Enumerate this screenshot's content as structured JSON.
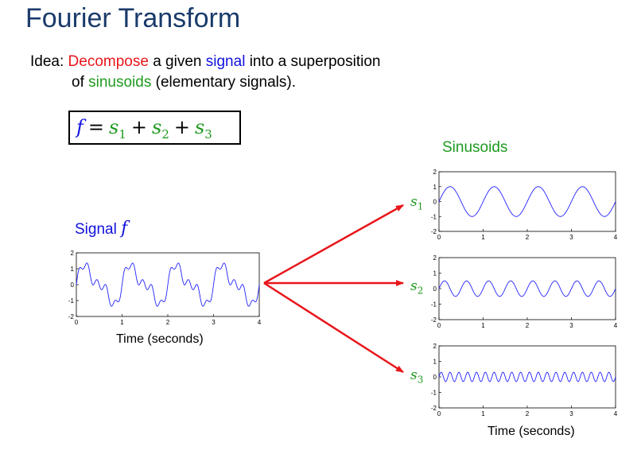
{
  "title": "Fourier Transform",
  "idea": {
    "prefix": "Idea: ",
    "decompose": "Decompose",
    "mid1": " a given ",
    "signal": "signal",
    "mid2": " into a superposition",
    "line2_pre": "of ",
    "sinusoids": "sinusoids",
    "line2_post": " (elementary signals)."
  },
  "equation": {
    "f": "f",
    "eq": "=",
    "s": "s",
    "sub1": "1",
    "sub2": "2",
    "sub3": "3",
    "plus": "+"
  },
  "labels": {
    "sinusoids": "Sinusoids",
    "signal": "Signal",
    "signal_f": "f",
    "time_left": "Time (seconds)",
    "time_right": "Time (seconds)"
  },
  "colors": {
    "title": "#1a3a6b",
    "red": "#e8161b",
    "blue": "#1111dd",
    "green": "#1f9a1f",
    "plot_line": "#2222ff",
    "arrow": "#e8161b"
  },
  "chart_data": [
    {
      "type": "line",
      "name": "signal f",
      "xlim": [
        0,
        4
      ],
      "ylim": [
        -2,
        2
      ],
      "xticks": [
        "0",
        "1",
        "2",
        "3",
        "4"
      ],
      "yticks": [
        "2",
        "1",
        "0",
        "-1",
        "-2"
      ],
      "xlabel": "Time (seconds)",
      "components": [
        {
          "freq_hz": 1,
          "amp": 1
        },
        {
          "freq_hz": 2,
          "amp": 0.5
        },
        {
          "freq_hz": 5,
          "amp": 0.3
        }
      ]
    },
    {
      "type": "line",
      "name": "s1",
      "xlim": [
        0,
        4
      ],
      "ylim": [
        -2,
        2
      ],
      "xticks": [
        "0",
        "1",
        "2",
        "3",
        "4"
      ],
      "yticks": [
        "2",
        "1",
        "0",
        "-1",
        "-2"
      ],
      "freq_hz": 1,
      "amp": 1
    },
    {
      "type": "line",
      "name": "s2",
      "xlim": [
        0,
        4
      ],
      "ylim": [
        -2,
        2
      ],
      "xticks": [
        "0",
        "1",
        "2",
        "3",
        "4"
      ],
      "yticks": [
        "2",
        "1",
        "0",
        "-1",
        "-2"
      ],
      "freq_hz": 2,
      "amp": 0.5
    },
    {
      "type": "line",
      "name": "s3",
      "xlim": [
        0,
        4
      ],
      "ylim": [
        -2,
        2
      ],
      "xticks": [
        "0",
        "1",
        "2",
        "3",
        "4"
      ],
      "yticks": [
        "2",
        "1",
        "0",
        "-1",
        "-2"
      ],
      "xlabel": "Time (seconds)",
      "freq_hz": 5,
      "amp": 0.3
    }
  ]
}
